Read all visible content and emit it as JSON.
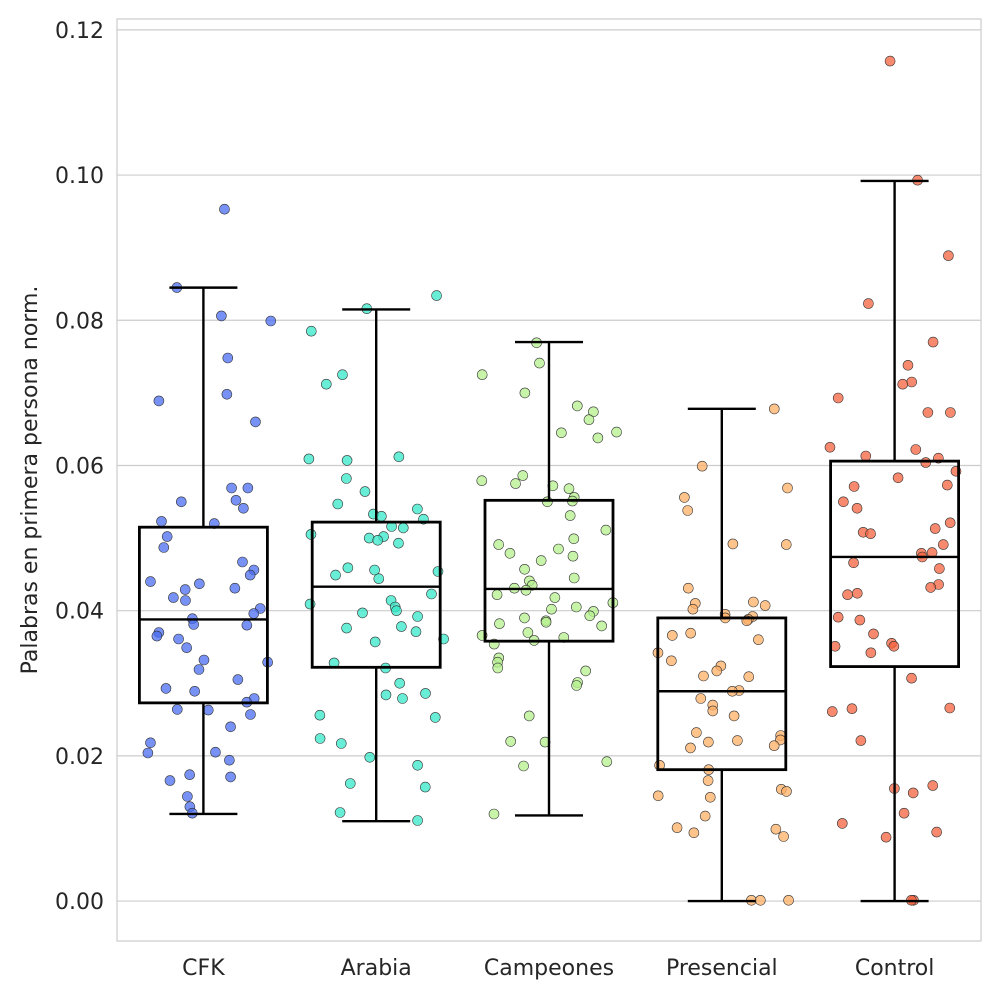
{
  "chart_data": {
    "type": "box",
    "title": "",
    "xlabel": "",
    "ylabel": "Palabras en primera persona norm.",
    "ylim": [
      -0.0055,
      0.1215
    ],
    "yticks": [
      "0.00",
      "0.02",
      "0.04",
      "0.06",
      "0.08",
      "0.10",
      "0.12"
    ],
    "ytick_values": [
      0,
      0.02,
      0.04,
      0.06,
      0.08,
      0.1,
      0.12
    ],
    "grid": "horizontal",
    "categories": [
      "CFK",
      "Arabia",
      "Campeones",
      "Presencial",
      "Control"
    ],
    "colors": [
      "#4a6cf0",
      "#35e8c8",
      "#b6f08e",
      "#ffb066",
      "#f4623e"
    ],
    "boxes": [
      {
        "whisker_low": 0.012,
        "q1": 0.0273,
        "median": 0.0388,
        "q3": 0.0515,
        "whisker_high": 0.0845
      },
      {
        "whisker_low": 0.011,
        "q1": 0.0322,
        "median": 0.0433,
        "q3": 0.0522,
        "whisker_high": 0.0815
      },
      {
        "whisker_low": 0.0118,
        "q1": 0.0358,
        "median": 0.043,
        "q3": 0.0552,
        "whisker_high": 0.077
      },
      {
        "whisker_low": 0.0,
        "q1": 0.0181,
        "median": 0.0289,
        "q3": 0.039,
        "whisker_high": 0.0678
      },
      {
        "whisker_low": 0.0,
        "q1": 0.0323,
        "median": 0.0474,
        "q3": 0.0606,
        "whisker_high": 0.0992
      }
    ],
    "points": [
      [
        0.0953,
        0.0845,
        0.0806,
        0.0799,
        0.0748,
        0.0698,
        0.0689,
        0.066,
        0.0569,
        0.0569,
        0.0552,
        0.055,
        0.0541,
        0.0523,
        0.052,
        0.0502,
        0.0487,
        0.0467,
        0.0456,
        0.0449,
        0.044,
        0.0437,
        0.0431,
        0.0429,
        0.0418,
        0.0414,
        0.0403,
        0.0396,
        0.0389,
        0.0381,
        0.038,
        0.037,
        0.0365,
        0.0361,
        0.0349,
        0.0332,
        0.0329,
        0.0319,
        0.0305,
        0.0293,
        0.0289,
        0.0279,
        0.0274,
        0.0264,
        0.0263,
        0.0257,
        0.024,
        0.0218,
        0.0205,
        0.0204,
        0.0194,
        0.0174,
        0.0171,
        0.0166,
        0.0144,
        0.013,
        0.0121
      ],
      [
        0.0834,
        0.0816,
        0.0785,
        0.0725,
        0.0712,
        0.0612,
        0.0609,
        0.0607,
        0.0582,
        0.0564,
        0.0547,
        0.054,
        0.0533,
        0.053,
        0.0526,
        0.0516,
        0.0514,
        0.0505,
        0.0502,
        0.05,
        0.0497,
        0.0493,
        0.0459,
        0.0456,
        0.0454,
        0.0449,
        0.0444,
        0.0423,
        0.0414,
        0.0409,
        0.0405,
        0.04,
        0.0397,
        0.0392,
        0.0378,
        0.0376,
        0.0371,
        0.0361,
        0.0357,
        0.0328,
        0.0321,
        0.03,
        0.0286,
        0.0284,
        0.0279,
        0.0256,
        0.0253,
        0.0224,
        0.0217,
        0.0198,
        0.0187,
        0.0162,
        0.0157,
        0.0122,
        0.0111
      ],
      [
        0.0769,
        0.0741,
        0.0725,
        0.07,
        0.0682,
        0.0674,
        0.0663,
        0.0646,
        0.0645,
        0.0638,
        0.0586,
        0.0579,
        0.0575,
        0.0572,
        0.0568,
        0.0556,
        0.0551,
        0.055,
        0.0531,
        0.0511,
        0.0499,
        0.0491,
        0.0485,
        0.0479,
        0.0475,
        0.0469,
        0.0457,
        0.0445,
        0.0441,
        0.0435,
        0.0431,
        0.0428,
        0.0422,
        0.0418,
        0.0411,
        0.0405,
        0.0402,
        0.0399,
        0.0393,
        0.039,
        0.0386,
        0.0384,
        0.0382,
        0.0379,
        0.037,
        0.0366,
        0.0363,
        0.0359,
        0.0354,
        0.0335,
        0.0329,
        0.0321,
        0.0317,
        0.0301,
        0.0297,
        0.0255,
        0.022,
        0.0219,
        0.0192,
        0.0186,
        0.012
      ],
      [
        0.0678,
        0.0599,
        0.0569,
        0.0556,
        0.0538,
        0.0492,
        0.0491,
        0.0431,
        0.0412,
        0.041,
        0.0407,
        0.0402,
        0.0395,
        0.0392,
        0.039,
        0.0388,
        0.0386,
        0.0369,
        0.0366,
        0.036,
        0.0342,
        0.0331,
        0.0324,
        0.0317,
        0.031,
        0.0309,
        0.029,
        0.0289,
        0.0279,
        0.027,
        0.0262,
        0.0255,
        0.0232,
        0.0228,
        0.0222,
        0.0221,
        0.0219,
        0.0214,
        0.0211,
        0.0187,
        0.0181,
        0.0166,
        0.0154,
        0.0151,
        0.0145,
        0.0143,
        0.0117,
        0.0101,
        0.0099,
        0.0094,
        0.0089,
        0.0001,
        0.0001,
        0.0001
      ],
      [
        0.1157,
        0.0993,
        0.0889,
        0.0823,
        0.077,
        0.0738,
        0.0715,
        0.0712,
        0.0693,
        0.0673,
        0.0673,
        0.0625,
        0.0622,
        0.0613,
        0.061,
        0.0604,
        0.0592,
        0.0583,
        0.0573,
        0.0571,
        0.055,
        0.0541,
        0.0521,
        0.0513,
        0.0508,
        0.0506,
        0.0491,
        0.048,
        0.0479,
        0.0474,
        0.0466,
        0.0458,
        0.0436,
        0.0432,
        0.0424,
        0.0422,
        0.0391,
        0.0387,
        0.0368,
        0.0355,
        0.0351,
        0.0351,
        0.0342,
        0.0307,
        0.0266,
        0.0265,
        0.0261,
        0.0221,
        0.0159,
        0.0155,
        0.0149,
        0.0121,
        0.0107,
        0.0095,
        0.0088,
        0.0001,
        0.0001
      ]
    ]
  }
}
